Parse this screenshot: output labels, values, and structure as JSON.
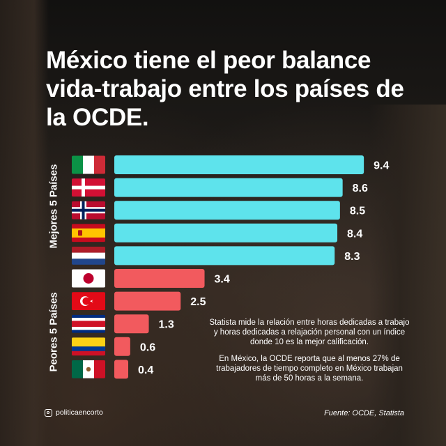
{
  "title": "México tiene el peor balance vida-trabajo entre los países de la OCDE.",
  "groups": {
    "best_label": "Mejores 5 Países",
    "worst_label": "Peores 5 Países"
  },
  "notes": {
    "method": "Statista mide la relación entre horas dedicadas a trabajo y horas dedicadas a relajación personal con un índice donde 10 es la mejor calificación.",
    "mexico": "En México, la OCDE reporta que al menos 27% de trabajadores de tiempo completo en México trabajan más de 50 horas a la semana."
  },
  "footer": {
    "handle": "politicaencorto",
    "handle_icon": "instagram-icon",
    "source": "Fuente: OCDE, Statista"
  },
  "colors": {
    "best_bar": "#5ee3ec",
    "worst_bar": "#f25a5e"
  },
  "chart_data": {
    "type": "bar",
    "orientation": "horizontal",
    "categories": [
      "Italia",
      "Dinamarca",
      "Noruega",
      "España",
      "Países Bajos",
      "Japón",
      "Turquía",
      "Costa Rica",
      "Colombia",
      "México"
    ],
    "values": [
      9.4,
      8.6,
      8.5,
      8.4,
      8.3,
      3.4,
      2.5,
      1.3,
      0.6,
      0.4
    ],
    "value_labels": [
      "9.4",
      "8.6",
      "8.5",
      "8.4",
      "8.3",
      "3.4",
      "2.5",
      "1.3",
      "0.6",
      "0.4"
    ],
    "groups": [
      "best",
      "best",
      "best",
      "best",
      "best",
      "worst",
      "worst",
      "worst",
      "worst",
      "worst"
    ],
    "xlim": [
      0,
      10
    ],
    "title": "",
    "xlabel": "",
    "ylabel": ""
  }
}
